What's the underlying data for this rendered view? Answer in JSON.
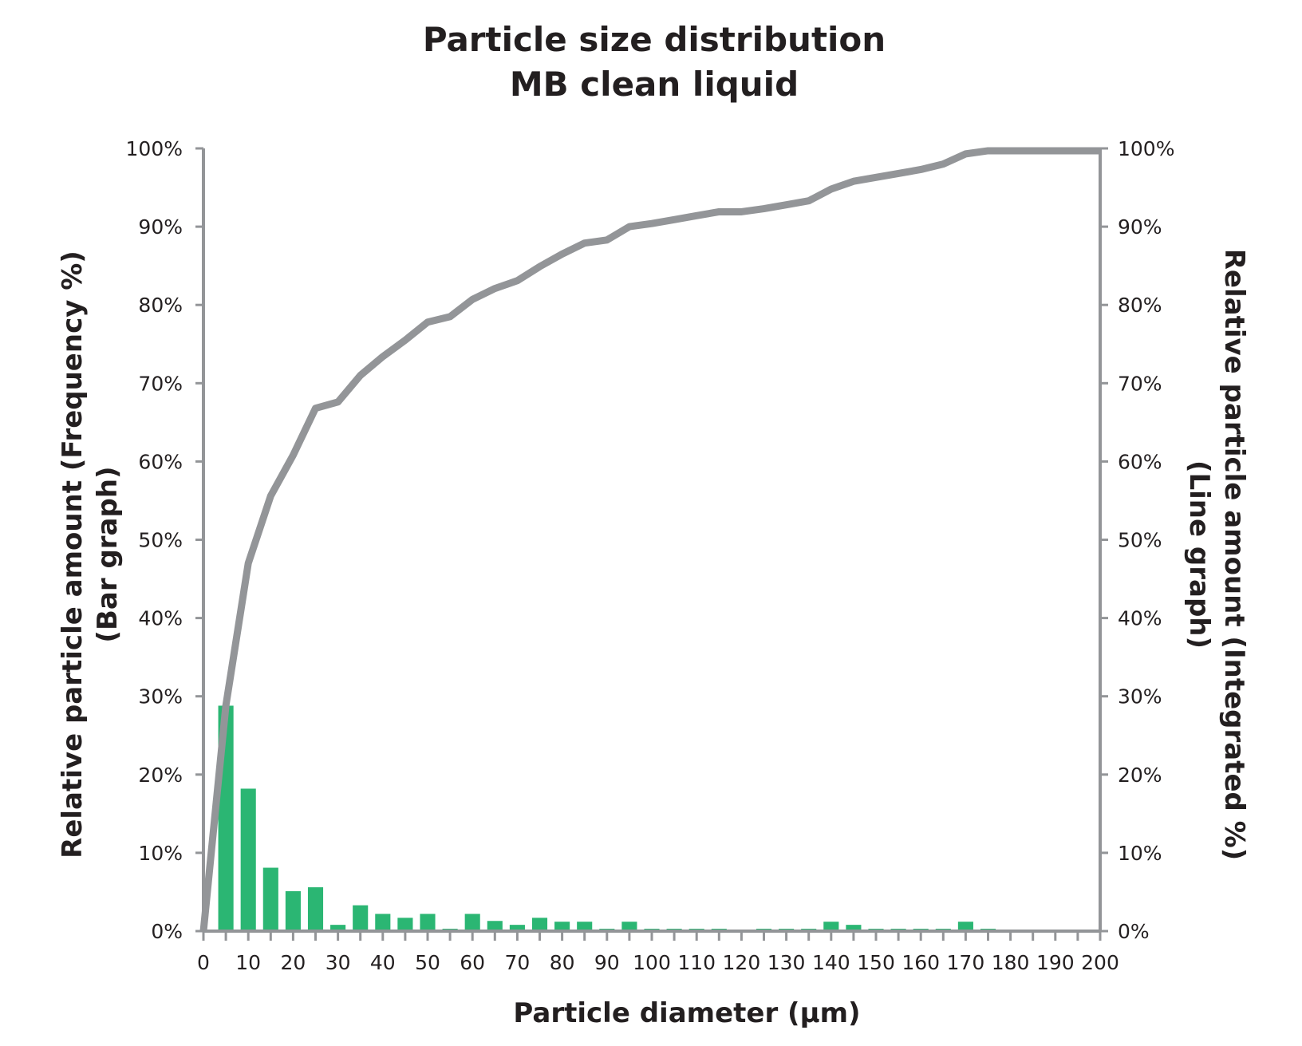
{
  "chart_data": {
    "type": "bar",
    "title_lines": [
      "Particle size distribution",
      "MB clean liquid"
    ],
    "xlabel": "Particle diameter (µm)",
    "ylabel_left_lines": [
      "Relative particle amount (Frequency %)",
      "(Bar graph)"
    ],
    "ylabel_right_lines": [
      "Relative particle amount (Integrated %)",
      "(Line graph)"
    ],
    "x_ticks": [
      "0",
      "10",
      "20",
      "30",
      "40",
      "50",
      "60",
      "70",
      "80",
      "90",
      "100",
      "110",
      "120",
      "130",
      "140",
      "150",
      "160",
      "170",
      "180",
      "190",
      "200"
    ],
    "y_ticks_left": [
      "0%",
      "10%",
      "20%",
      "30%",
      "40%",
      "50%",
      "60%",
      "70%",
      "80%",
      "90%",
      "100%"
    ],
    "y_ticks_right": [
      "0%",
      "10%",
      "20%",
      "30%",
      "40%",
      "50%",
      "60%",
      "70%",
      "80%",
      "90%",
      "100%"
    ],
    "xlim": [
      0,
      200
    ],
    "ylim": [
      0,
      100
    ],
    "grid": false,
    "colors": {
      "bar": "#2bb673",
      "line": "#939598",
      "axis": "#939598",
      "text": "#231f20"
    },
    "series": [
      {
        "type": "bar",
        "x": [
          5,
          10,
          15,
          20,
          25,
          30,
          35,
          40,
          45,
          50,
          55,
          60,
          65,
          70,
          75,
          80,
          85,
          90,
          95,
          100,
          105,
          110,
          115,
          120,
          125,
          130,
          135,
          140,
          145,
          150,
          155,
          160,
          165,
          170,
          175,
          180,
          185,
          190,
          195,
          200
        ],
        "values": [
          28.8,
          18.2,
          8.1,
          5.1,
          5.6,
          0.8,
          3.3,
          2.2,
          1.7,
          2.2,
          0.3,
          2.2,
          1.3,
          0.8,
          1.7,
          1.2,
          1.2,
          0.3,
          1.2,
          0.3,
          0.3,
          0.3,
          0.3,
          0,
          0.3,
          0.3,
          0.3,
          1.2,
          0.8,
          0.3,
          0.3,
          0.3,
          0.3,
          1.2,
          0.3,
          0,
          0,
          0,
          0,
          0
        ]
      },
      {
        "type": "line",
        "x": [
          0,
          5,
          10,
          15,
          20,
          25,
          30,
          35,
          40,
          45,
          50,
          55,
          60,
          65,
          70,
          75,
          80,
          85,
          90,
          95,
          100,
          105,
          110,
          115,
          120,
          125,
          130,
          135,
          140,
          145,
          150,
          155,
          160,
          165,
          170,
          175,
          180,
          185,
          190,
          195,
          200
        ],
        "values": [
          0,
          28.8,
          47,
          55.6,
          60.8,
          66.8,
          67.6,
          71,
          73.4,
          75.5,
          77.8,
          78.5,
          80.7,
          82.1,
          83.1,
          84.9,
          86.5,
          87.9,
          88.3,
          90,
          90.4,
          90.9,
          91.4,
          91.9,
          91.9,
          92.3,
          92.8,
          93.3,
          94.8,
          95.8,
          96.3,
          96.8,
          97.3,
          98,
          99.3,
          99.7,
          99.7,
          99.7,
          99.7,
          99.7,
          99.7
        ]
      }
    ]
  }
}
